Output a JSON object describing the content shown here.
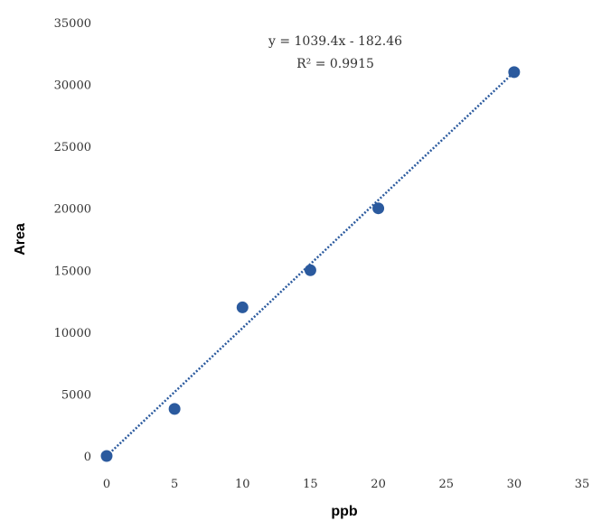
{
  "chart_data": {
    "type": "scatter",
    "title": "",
    "xlabel": "ppb",
    "ylabel": "Area",
    "xlim": [
      0,
      35
    ],
    "ylim": [
      0,
      35000
    ],
    "x_ticks": [
      "0",
      "5",
      "10",
      "15",
      "20",
      "25",
      "30",
      "35"
    ],
    "y_ticks": [
      "0",
      "5000",
      "10000",
      "15000",
      "20000",
      "25000",
      "30000",
      "35000"
    ],
    "grid": false,
    "legend": "none",
    "series": [
      {
        "x": [
          0,
          5,
          10,
          15,
          20,
          30
        ],
        "y": [
          0,
          3800,
          12000,
          15000,
          20000,
          31000
        ],
        "color": "#2b5a9e"
      }
    ],
    "trendline": {
      "type": "linear",
      "slope": 1039.4,
      "intercept": -182.46,
      "color": "#2b5a9e",
      "style": "dotted"
    },
    "annotations": [
      "y = 1039.4x - 182.46",
      "R² = 0.9915"
    ]
  }
}
